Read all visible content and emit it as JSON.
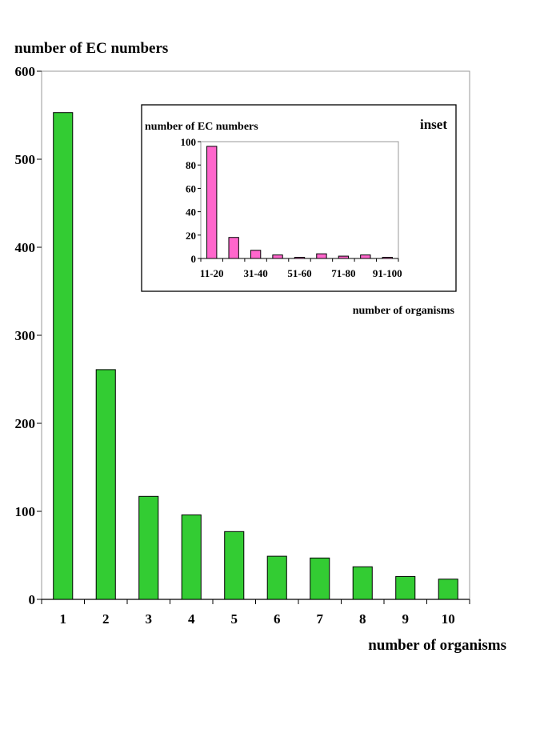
{
  "chart_data": [
    {
      "type": "bar",
      "ylabel": "number of EC numbers",
      "xlabel": "number of organisms",
      "ylim": [
        0,
        600
      ],
      "yticks": [
        "0",
        "100",
        "200",
        "300",
        "400",
        "500",
        "600"
      ],
      "categories": [
        "1",
        "2",
        "3",
        "4",
        "5",
        "6",
        "7",
        "8",
        "9",
        "10"
      ],
      "values": [
        553,
        261,
        117,
        96,
        77,
        49,
        47,
        37,
        26,
        23
      ],
      "bar_color": "#33cc33",
      "grid": false
    },
    {
      "type": "bar",
      "tag": "inset",
      "ylabel": "number of EC numbers",
      "xlabel": "number of organisms",
      "ylim": [
        0,
        100
      ],
      "yticks": [
        "0",
        "20",
        "40",
        "60",
        "80",
        "100"
      ],
      "categories": [
        "11-20",
        "21-30",
        "31-40",
        "41-50",
        "51-60",
        "61-70",
        "71-80",
        "81-90",
        "91-100"
      ],
      "shown_category_labels": [
        "11-20",
        "31-40",
        "51-60",
        "71-80",
        "91-100"
      ],
      "values": [
        96,
        18,
        7,
        3,
        1,
        4,
        2,
        3,
        1
      ],
      "bar_color": "#ff66cc",
      "grid": false
    }
  ]
}
